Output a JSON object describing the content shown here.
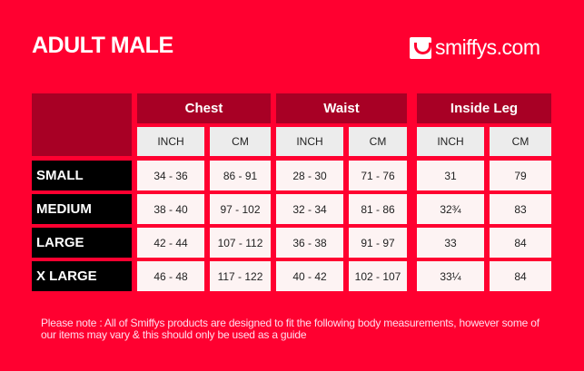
{
  "title": "ADULT MALE",
  "logo": {
    "text": "smiffys.com",
    "icon": "smiley-icon"
  },
  "table": {
    "groups": [
      "Chest",
      "Waist",
      "Inside Leg"
    ],
    "units": [
      "INCH",
      "CM",
      "INCH",
      "CM",
      "INCH",
      "CM"
    ],
    "rows": [
      {
        "size": "SMALL",
        "values": [
          "34 - 36",
          "86 - 91",
          "28 - 30",
          "71 - 76",
          "31",
          "79"
        ]
      },
      {
        "size": "MEDIUM",
        "values": [
          "38 - 40",
          "97 - 102",
          "32 - 34",
          "81 - 86",
          "32¾",
          "83"
        ]
      },
      {
        "size": "LARGE",
        "values": [
          "42 - 44",
          "107 - 112",
          "36 - 38",
          "91 - 97",
          "33",
          "84"
        ]
      },
      {
        "size": "X LARGE",
        "values": [
          "46 - 48",
          "117 - 122",
          "40 - 42",
          "102 - 107",
          "33¼",
          "84"
        ]
      }
    ]
  },
  "note": "Please note : All of Smiffys products are designed to fit the following body measurements, however some of our items may vary & this should only be used as a guide",
  "colors": {
    "background": "#ff0030",
    "header": "#a80025"
  }
}
